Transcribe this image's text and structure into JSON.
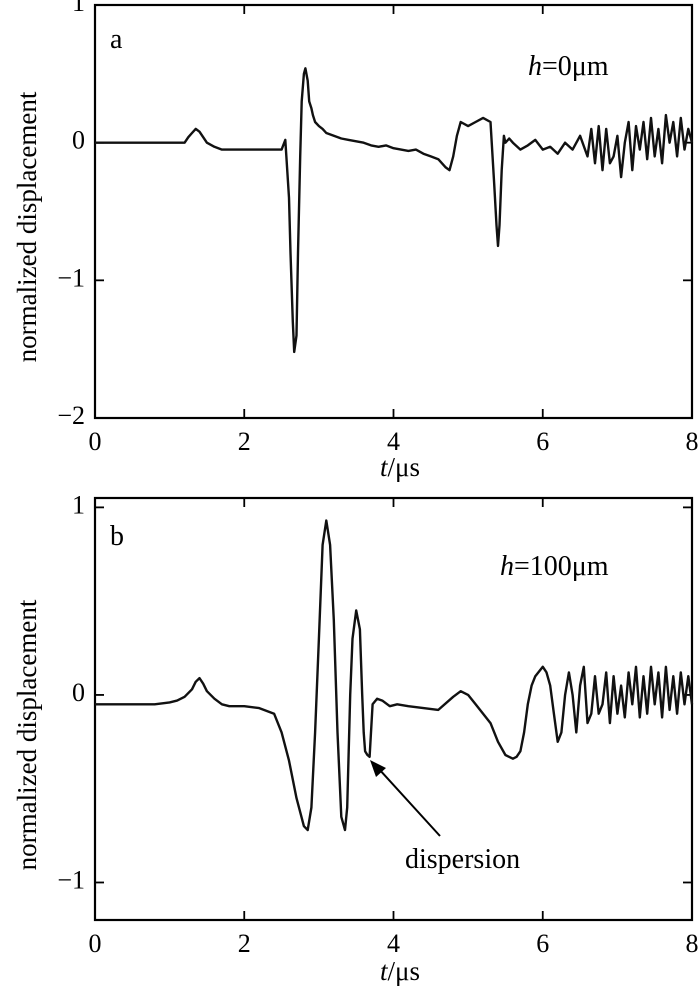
{
  "chart_data": [
    {
      "type": "line",
      "panel_label": "a",
      "annotation": {
        "var": "h",
        "value": "=0μm"
      },
      "xlabel": {
        "var": "t",
        "unit": "/μs"
      },
      "ylabel": "normalized displacement",
      "xlim": [
        0,
        8
      ],
      "ylim": [
        -2,
        1
      ],
      "xticks": [
        "0",
        "2",
        "4",
        "6",
        "8"
      ],
      "yticks": [
        {
          "v": -2,
          "label": "−2"
        },
        {
          "v": -1,
          "label": "−1"
        },
        {
          "v": 0,
          "label": "0"
        },
        {
          "v": 1,
          "label": "1"
        }
      ],
      "grid": false,
      "series": [
        {
          "x": [
            0,
            1.2,
            1.25,
            1.3,
            1.35,
            1.4,
            1.45,
            1.5,
            1.6,
            1.7,
            2.0,
            2.3,
            2.5,
            2.55,
            2.6,
            2.62,
            2.65,
            2.67,
            2.7,
            2.72,
            2.75,
            2.77,
            2.8,
            2.82,
            2.85,
            2.87,
            2.9,
            2.92,
            2.95,
            3.0,
            3.05,
            3.1,
            3.2,
            3.3,
            3.4,
            3.5,
            3.6,
            3.7,
            3.8,
            3.9,
            4.0,
            4.1,
            4.2,
            4.3,
            4.4,
            4.5,
            4.6,
            4.7,
            4.75,
            4.8,
            4.85,
            4.9,
            5.0,
            5.1,
            5.2,
            5.3,
            5.35,
            5.38,
            5.4,
            5.42,
            5.45,
            5.48,
            5.5,
            5.55,
            5.6,
            5.7,
            5.8,
            5.9,
            6.0,
            6.1,
            6.2,
            6.3,
            6.4,
            6.5,
            6.6,
            6.65,
            6.7,
            6.75,
            6.8,
            6.85,
            6.9,
            6.95,
            7.0,
            7.05,
            7.1,
            7.15,
            7.2,
            7.25,
            7.3,
            7.35,
            7.4,
            7.45,
            7.5,
            7.55,
            7.6,
            7.65,
            7.7,
            7.75,
            7.8,
            7.85,
            7.9,
            7.95,
            8.0
          ],
          "y": [
            0,
            0,
            0.04,
            0.07,
            0.1,
            0.08,
            0.04,
            0.0,
            -0.03,
            -0.05,
            -0.05,
            -0.05,
            -0.05,
            0.02,
            -0.4,
            -0.8,
            -1.3,
            -1.52,
            -1.4,
            -0.8,
            -0.1,
            0.3,
            0.5,
            0.54,
            0.45,
            0.3,
            0.25,
            0.2,
            0.15,
            0.12,
            0.1,
            0.07,
            0.05,
            0.03,
            0.02,
            0.01,
            0.0,
            -0.02,
            -0.03,
            -0.02,
            -0.04,
            -0.05,
            -0.06,
            -0.05,
            -0.08,
            -0.1,
            -0.12,
            -0.18,
            -0.2,
            -0.1,
            0.05,
            0.15,
            0.12,
            0.15,
            0.18,
            0.15,
            -0.3,
            -0.6,
            -0.75,
            -0.6,
            -0.2,
            0.05,
            0.0,
            0.03,
            0.0,
            -0.05,
            -0.02,
            0.02,
            -0.05,
            -0.03,
            -0.08,
            0.0,
            -0.05,
            0.05,
            -0.1,
            0.1,
            -0.15,
            0.12,
            -0.2,
            0.1,
            -0.15,
            -0.1,
            0.05,
            -0.25,
            0.0,
            0.15,
            -0.2,
            0.12,
            -0.05,
            0.15,
            -0.12,
            0.18,
            -0.1,
            0.1,
            -0.15,
            0.2,
            0.0,
            0.15,
            -0.1,
            0.18,
            -0.05,
            0.1,
            0.0
          ]
        }
      ]
    },
    {
      "type": "line",
      "panel_label": "b",
      "annotation": {
        "var": "h",
        "value": "=100μm"
      },
      "callout": "dispersion",
      "callout_target": {
        "x": 3.68,
        "y": -0.33
      },
      "xlabel": {
        "var": "t",
        "unit": "/μs"
      },
      "ylabel": "normalized displacement",
      "xlim": [
        0,
        8
      ],
      "ylim": [
        -1.2,
        1.05
      ],
      "xticks": [
        "0",
        "2",
        "4",
        "6",
        "8"
      ],
      "yticks": [
        {
          "v": -1,
          "label": "−1"
        },
        {
          "v": 0,
          "label": "0"
        },
        {
          "v": 1,
          "label": "1"
        }
      ],
      "grid": false,
      "series": [
        {
          "x": [
            0,
            0.8,
            1.0,
            1.1,
            1.2,
            1.3,
            1.35,
            1.4,
            1.45,
            1.5,
            1.6,
            1.7,
            1.8,
            2.0,
            2.2,
            2.4,
            2.5,
            2.6,
            2.7,
            2.8,
            2.85,
            2.9,
            2.95,
            3.0,
            3.05,
            3.1,
            3.15,
            3.2,
            3.25,
            3.3,
            3.35,
            3.38,
            3.42,
            3.45,
            3.5,
            3.55,
            3.58,
            3.6,
            3.62,
            3.65,
            3.68,
            3.72,
            3.78,
            3.85,
            3.95,
            4.05,
            4.2,
            4.4,
            4.6,
            4.8,
            4.9,
            5.0,
            5.1,
            5.2,
            5.3,
            5.4,
            5.5,
            5.6,
            5.65,
            5.7,
            5.75,
            5.8,
            5.85,
            5.9,
            6.0,
            6.05,
            6.1,
            6.15,
            6.2,
            6.25,
            6.3,
            6.35,
            6.4,
            6.45,
            6.5,
            6.55,
            6.6,
            6.65,
            6.7,
            6.75,
            6.8,
            6.85,
            6.9,
            6.95,
            7.0,
            7.05,
            7.1,
            7.15,
            7.2,
            7.25,
            7.3,
            7.35,
            7.4,
            7.45,
            7.5,
            7.55,
            7.6,
            7.65,
            7.7,
            7.75,
            7.8,
            7.85,
            7.9,
            7.95,
            8.0
          ],
          "y": [
            -0.05,
            -0.05,
            -0.04,
            -0.03,
            -0.01,
            0.03,
            0.07,
            0.09,
            0.06,
            0.02,
            -0.02,
            -0.05,
            -0.06,
            -0.06,
            -0.07,
            -0.1,
            -0.2,
            -0.35,
            -0.55,
            -0.7,
            -0.72,
            -0.6,
            -0.2,
            0.3,
            0.8,
            0.93,
            0.8,
            0.4,
            -0.2,
            -0.65,
            -0.72,
            -0.6,
            0.0,
            0.3,
            0.45,
            0.35,
            0.0,
            -0.2,
            -0.3,
            -0.32,
            -0.33,
            -0.05,
            -0.02,
            -0.03,
            -0.06,
            -0.05,
            -0.06,
            -0.07,
            -0.08,
            -0.01,
            0.02,
            0.0,
            -0.05,
            -0.1,
            -0.15,
            -0.25,
            -0.32,
            -0.34,
            -0.33,
            -0.3,
            -0.2,
            -0.05,
            0.05,
            0.1,
            0.15,
            0.12,
            0.05,
            -0.1,
            -0.25,
            -0.2,
            0.0,
            0.12,
            0.0,
            -0.2,
            0.05,
            0.15,
            -0.15,
            -0.1,
            0.1,
            -0.1,
            -0.05,
            0.12,
            -0.15,
            0.1,
            -0.1,
            0.05,
            -0.12,
            0.12,
            -0.05,
            0.15,
            -0.12,
            0.1,
            -0.1,
            0.15,
            -0.05,
            0.12,
            -0.12,
            0.15,
            -0.08,
            0.1,
            -0.1,
            0.12,
            -0.05,
            0.1,
            -0.05
          ]
        }
      ]
    }
  ]
}
